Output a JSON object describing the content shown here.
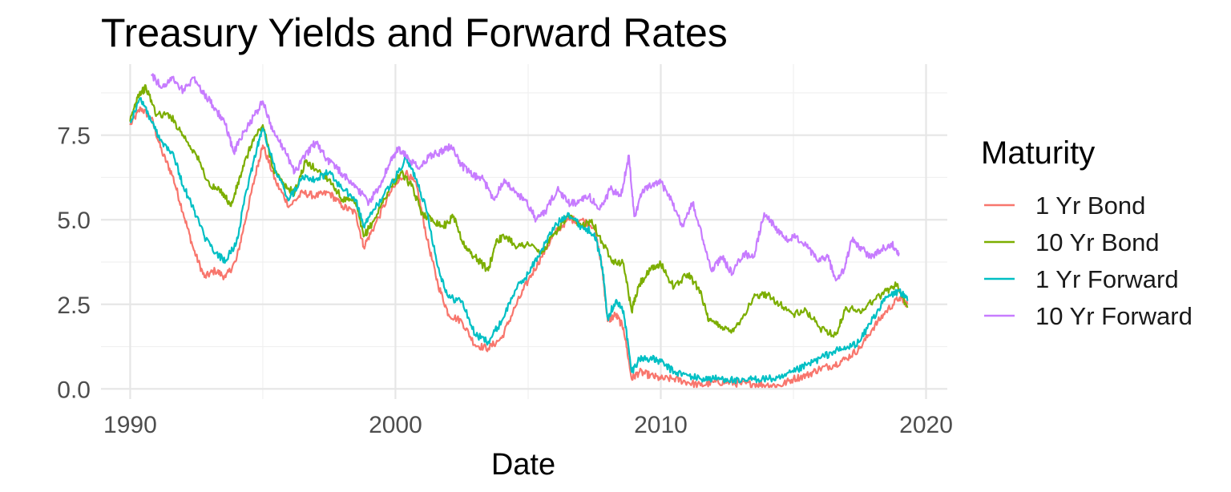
{
  "chart_data": {
    "type": "line",
    "title": "Treasury Yields and Forward Rates",
    "xlabel": "Date",
    "ylabel": "",
    "xlim": [
      1988.9,
      2020.8
    ],
    "ylim": [
      -0.3,
      9.6
    ],
    "x_ticks": [
      {
        "value": 1990,
        "label": "1990"
      },
      {
        "value": 2000,
        "label": "2000"
      },
      {
        "value": 2010,
        "label": "2010"
      },
      {
        "value": 2020,
        "label": "2020"
      }
    ],
    "y_ticks": [
      {
        "value": 0.0,
        "label": "0.0"
      },
      {
        "value": 2.5,
        "label": "2.5"
      },
      {
        "value": 5.0,
        "label": "5.0"
      },
      {
        "value": 7.5,
        "label": "7.5"
      }
    ],
    "grid": true,
    "legend": {
      "title": "Maturity",
      "placement": "right"
    },
    "series": [
      {
        "name": "1 Yr Bond",
        "color": "#F8766D",
        "x": [
          1990.0,
          1990.4,
          1990.8,
          1991.2,
          1991.6,
          1992.0,
          1992.4,
          1992.8,
          1993.2,
          1993.6,
          1994.0,
          1994.4,
          1994.8,
          1995.0,
          1995.5,
          1996.0,
          1996.5,
          1997.0,
          1997.5,
          1998.0,
          1998.5,
          1998.8,
          1999.2,
          1999.8,
          2000.4,
          2000.8,
          2001.2,
          2001.6,
          2002.0,
          2002.5,
          2003.0,
          2003.5,
          2004.0,
          2004.5,
          2005.0,
          2005.5,
          2006.0,
          2006.5,
          2007.0,
          2007.5,
          2007.8,
          2008.0,
          2008.3,
          2008.6,
          2008.9,
          2009.2,
          2009.6,
          2010.0,
          2010.5,
          2011.0,
          2011.5,
          2012.0,
          2012.5,
          2013.0,
          2013.5,
          2014.0,
          2014.5,
          2015.0,
          2015.5,
          2016.0,
          2016.5,
          2017.0,
          2017.5,
          2018.0,
          2018.5,
          2019.0,
          2019.3
        ],
        "values": [
          7.8,
          8.3,
          8.0,
          7.0,
          6.3,
          5.2,
          4.1,
          3.3,
          3.5,
          3.3,
          3.8,
          5.2,
          6.6,
          7.2,
          6.1,
          5.4,
          5.8,
          5.7,
          5.8,
          5.4,
          5.2,
          4.2,
          4.8,
          5.8,
          6.4,
          6.0,
          4.4,
          3.1,
          2.2,
          2.0,
          1.3,
          1.2,
          1.5,
          2.4,
          3.2,
          3.9,
          4.6,
          5.0,
          5.0,
          4.8,
          3.5,
          2.0,
          2.2,
          1.8,
          0.3,
          0.5,
          0.4,
          0.3,
          0.3,
          0.2,
          0.1,
          0.2,
          0.2,
          0.15,
          0.15,
          0.12,
          0.1,
          0.3,
          0.4,
          0.6,
          0.7,
          0.9,
          1.2,
          1.8,
          2.3,
          2.7,
          2.5
        ]
      },
      {
        "name": "10 Yr Bond",
        "color": "#7CAE00",
        "x": [
          1990.0,
          1990.3,
          1990.6,
          1991.0,
          1991.5,
          1992.0,
          1992.5,
          1993.0,
          1993.5,
          1993.8,
          1994.2,
          1994.6,
          1995.0,
          1995.4,
          1995.8,
          1996.2,
          1996.6,
          1997.0,
          1997.5,
          1998.0,
          1998.5,
          1998.8,
          1999.2,
          1999.7,
          2000.2,
          2000.6,
          2001.0,
          2001.4,
          2001.8,
          2002.2,
          2002.6,
          2003.0,
          2003.5,
          2003.8,
          2004.2,
          2004.6,
          2005.0,
          2005.5,
          2006.0,
          2006.5,
          2007.0,
          2007.4,
          2007.8,
          2008.2,
          2008.6,
          2008.9,
          2009.2,
          2009.6,
          2010.0,
          2010.5,
          2011.0,
          2011.5,
          2011.8,
          2012.2,
          2012.6,
          2013.0,
          2013.5,
          2014.0,
          2014.5,
          2015.0,
          2015.5,
          2016.0,
          2016.6,
          2017.0,
          2017.5,
          2018.0,
          2018.5,
          2018.9,
          2019.3
        ],
        "values": [
          7.9,
          8.7,
          8.9,
          8.1,
          8.1,
          7.5,
          6.9,
          6.0,
          5.8,
          5.4,
          6.4,
          7.3,
          7.8,
          6.5,
          6.0,
          5.8,
          6.7,
          6.5,
          6.2,
          5.6,
          5.5,
          4.5,
          5.0,
          5.8,
          6.4,
          6.0,
          5.2,
          5.0,
          4.8,
          5.1,
          4.2,
          3.9,
          3.5,
          4.4,
          4.5,
          4.2,
          4.3,
          4.0,
          4.6,
          5.1,
          4.8,
          5.0,
          4.3,
          3.8,
          3.7,
          2.3,
          3.1,
          3.5,
          3.7,
          3.0,
          3.4,
          2.9,
          2.0,
          1.9,
          1.7,
          2.0,
          2.7,
          2.8,
          2.5,
          2.2,
          2.3,
          1.8,
          1.6,
          2.4,
          2.3,
          2.6,
          2.9,
          3.1,
          2.4
        ]
      },
      {
        "name": "1 Yr Forward",
        "color": "#00BFC4",
        "x": [
          1990.0,
          1990.4,
          1990.8,
          1991.2,
          1991.6,
          1992.0,
          1992.4,
          1992.8,
          1993.2,
          1993.6,
          1994.0,
          1994.4,
          1994.8,
          1995.0,
          1995.5,
          1996.0,
          1996.5,
          1997.0,
          1997.5,
          1998.0,
          1998.5,
          1998.8,
          1999.2,
          1999.8,
          2000.4,
          2000.8,
          2001.2,
          2001.6,
          2002.0,
          2002.5,
          2003.0,
          2003.5,
          2004.0,
          2004.5,
          2005.0,
          2005.5,
          2006.0,
          2006.5,
          2007.0,
          2007.5,
          2007.8,
          2008.0,
          2008.3,
          2008.6,
          2008.9,
          2009.2,
          2009.6,
          2010.0,
          2010.5,
          2011.0,
          2011.5,
          2012.0,
          2012.5,
          2013.0,
          2013.5,
          2014.0,
          2014.5,
          2015.0,
          2015.5,
          2016.0,
          2016.5,
          2017.0,
          2017.5,
          2018.0,
          2018.5,
          2019.0,
          2019.3
        ],
        "values": [
          7.9,
          8.6,
          7.9,
          7.3,
          7.0,
          6.0,
          5.3,
          4.5,
          4.0,
          3.8,
          4.3,
          5.9,
          7.2,
          7.7,
          6.4,
          5.6,
          6.3,
          6.2,
          6.4,
          5.9,
          5.6,
          4.8,
          5.3,
          6.0,
          6.8,
          6.2,
          5.2,
          3.6,
          2.7,
          2.6,
          1.6,
          1.4,
          2.0,
          2.9,
          3.4,
          4.1,
          4.8,
          5.2,
          4.8,
          4.6,
          3.6,
          2.1,
          2.6,
          2.3,
          0.5,
          0.9,
          0.9,
          0.8,
          0.5,
          0.4,
          0.3,
          0.3,
          0.3,
          0.2,
          0.3,
          0.3,
          0.3,
          0.5,
          0.7,
          0.9,
          1.1,
          1.2,
          1.4,
          2.1,
          2.7,
          2.9,
          2.6
        ]
      },
      {
        "name": "10 Yr Forward",
        "color": "#C77CFF",
        "x": [
          1990.8,
          1991.2,
          1991.6,
          1992.0,
          1992.4,
          1992.8,
          1993.2,
          1993.6,
          1993.9,
          1994.3,
          1994.7,
          1995.0,
          1995.4,
          1995.8,
          1996.2,
          1996.6,
          1997.0,
          1997.4,
          1997.8,
          1998.2,
          1998.6,
          1999.0,
          1999.4,
          1999.8,
          2000.1,
          2000.5,
          2000.9,
          2001.3,
          2001.7,
          2002.1,
          2002.5,
          2002.9,
          2003.3,
          2003.7,
          2004.1,
          2004.5,
          2004.9,
          2005.3,
          2005.7,
          2006.1,
          2006.5,
          2006.9,
          2007.3,
          2007.7,
          2008.1,
          2008.5,
          2008.8,
          2009.0,
          2009.3,
          2009.6,
          2010.0,
          2010.4,
          2010.8,
          2011.2,
          2011.6,
          2011.9,
          2012.3,
          2012.7,
          2013.1,
          2013.5,
          2013.9,
          2014.3,
          2014.7,
          2015.1,
          2015.5,
          2015.9,
          2016.3,
          2016.6,
          2016.9,
          2017.2,
          2017.5,
          2017.9,
          2018.3,
          2018.7,
          2019.0
        ],
        "values": [
          9.3,
          8.9,
          9.2,
          8.8,
          9.2,
          8.7,
          8.3,
          7.8,
          7.0,
          7.6,
          8.1,
          8.5,
          7.6,
          7.1,
          6.4,
          6.9,
          7.3,
          6.8,
          6.5,
          6.2,
          5.9,
          5.5,
          6.0,
          6.7,
          7.1,
          6.8,
          6.5,
          6.9,
          7.0,
          7.2,
          6.6,
          6.3,
          6.2,
          5.6,
          6.2,
          5.8,
          5.6,
          5.0,
          5.3,
          5.9,
          5.5,
          5.5,
          5.7,
          5.3,
          5.9,
          5.7,
          6.9,
          5.1,
          5.8,
          6.0,
          6.1,
          5.6,
          4.8,
          5.5,
          4.4,
          3.5,
          3.9,
          3.4,
          4.0,
          3.9,
          5.2,
          4.8,
          4.4,
          4.5,
          4.2,
          3.8,
          3.9,
          3.2,
          3.5,
          4.4,
          4.2,
          3.9,
          4.1,
          4.3,
          4.0
        ]
      }
    ]
  }
}
